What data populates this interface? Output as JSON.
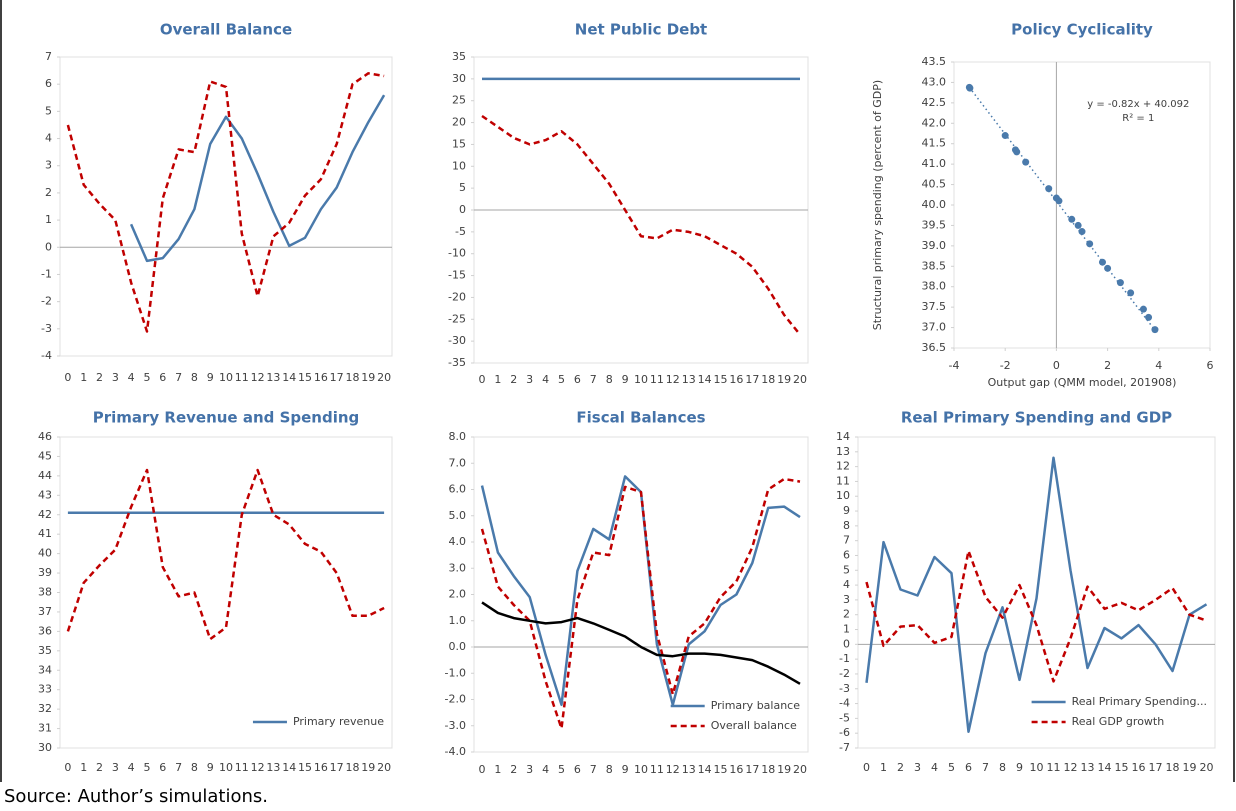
{
  "chart_data": [
    {
      "type": "line",
      "title": "Overall Balance",
      "categories": [
        "0",
        "1",
        "2",
        "3",
        "4",
        "5",
        "6",
        "7",
        "8",
        "9",
        "10",
        "11",
        "12",
        "13",
        "14",
        "15",
        "16",
        "17",
        "18",
        "19",
        "20"
      ],
      "ylim": [
        -4,
        7
      ],
      "yticks": [
        -4,
        -3,
        -2,
        -1,
        0,
        1,
        2,
        3,
        4,
        5,
        6,
        7
      ],
      "series": [
        {
          "color": "#4a7aab",
          "dash": "solid",
          "values": [
            null,
            null,
            null,
            null,
            0.85,
            -0.5,
            -0.4,
            0.3,
            1.4,
            3.8,
            4.8,
            4.0,
            2.7,
            1.3,
            0.05,
            0.35,
            1.4,
            2.2,
            3.5,
            4.6,
            5.6
          ]
        },
        {
          "color": "#c00000",
          "dash": "dashed",
          "values": [
            4.5,
            2.3,
            1.6,
            1.0,
            -1.3,
            -3.1,
            1.8,
            3.6,
            3.5,
            6.1,
            5.9,
            0.5,
            -1.8,
            0.4,
            0.9,
            1.9,
            2.5,
            3.8,
            6.0,
            6.4,
            6.3
          ]
        }
      ]
    },
    {
      "type": "line",
      "title": "Net Public Debt",
      "categories": [
        "0",
        "1",
        "2",
        "3",
        "4",
        "5",
        "6",
        "7",
        "8",
        "9",
        "10",
        "11",
        "12",
        "13",
        "14",
        "15",
        "16",
        "17",
        "18",
        "19",
        "20"
      ],
      "ylim": [
        -35,
        35
      ],
      "yticks": [
        -35,
        -30,
        -25,
        -20,
        -15,
        -10,
        -5,
        0,
        5,
        10,
        15,
        20,
        25,
        30,
        35
      ],
      "series": [
        {
          "color": "#4a7aab",
          "dash": "solid",
          "values": [
            30,
            30,
            30,
            30,
            30,
            30,
            30,
            30,
            30,
            30,
            30,
            30,
            30,
            30,
            30,
            30,
            30,
            30,
            30,
            30,
            30
          ]
        },
        {
          "color": "#c00000",
          "dash": "dashed",
          "values": [
            21.5,
            19,
            16.5,
            15,
            16,
            18,
            15,
            10.5,
            6,
            0,
            -6,
            -6.5,
            -4.5,
            -5,
            -6,
            -8,
            -10,
            -13,
            -18,
            -24,
            -28.5
          ]
        }
      ]
    },
    {
      "type": "scatter",
      "title": "Policy Cyclicality",
      "xlabel": "Output gap (QMM model, 201908)",
      "ylabel": "Structural primary spending (percent of GDP)",
      "xlim": [
        -4,
        6
      ],
      "xticks": [
        -4,
        -2,
        0,
        2,
        4,
        6
      ],
      "ylim": [
        36.5,
        43.5
      ],
      "yticks": [
        36.5,
        {
          "value": 37,
          "label": "37.0"
        },
        37.5,
        {
          "value": 38,
          "label": "38.0"
        },
        38.5,
        {
          "value": 39,
          "label": "39.0"
        },
        39.5,
        {
          "value": 40,
          "label": "40.0"
        },
        40.5,
        {
          "value": 41,
          "label": "41.0"
        },
        41.5,
        {
          "value": 42,
          "label": "42.0"
        },
        42.5,
        {
          "value": 43,
          "label": "43.0"
        },
        43.5
      ],
      "color": "#4a7aab",
      "x": [
        -3.4,
        -3.38,
        -2.0,
        -1.6,
        -1.55,
        -1.2,
        -0.3,
        0.0,
        0.1,
        0.6,
        0.85,
        1.0,
        1.3,
        1.8,
        2.0,
        2.5,
        2.9,
        3.4,
        3.6,
        3.85
      ],
      "values": [
        42.88,
        42.86,
        41.7,
        41.35,
        41.3,
        41.05,
        40.4,
        40.17,
        40.1,
        39.65,
        39.5,
        39.35,
        39.05,
        38.6,
        38.45,
        38.1,
        37.85,
        37.45,
        37.25,
        36.95
      ],
      "trendline": {
        "slope": -0.82,
        "intercept": 40.092
      },
      "annotations": [
        "y = -0.82x + 40.092",
        "R² = 1"
      ]
    },
    {
      "type": "line",
      "title": "Primary Revenue and Spending",
      "categories": [
        "0",
        "1",
        "2",
        "3",
        "4",
        "5",
        "6",
        "7",
        "8",
        "9",
        "10",
        "11",
        "12",
        "13",
        "14",
        "15",
        "16",
        "17",
        "18",
        "19",
        "20"
      ],
      "ylim": [
        30,
        46
      ],
      "yticks": [
        30,
        31,
        32,
        33,
        34,
        35,
        36,
        37,
        38,
        39,
        40,
        41,
        42,
        43,
        44,
        45,
        46
      ],
      "legend": "lower right",
      "series": [
        {
          "name": "Primary revenue",
          "color": "#4a7aab",
          "dash": "solid",
          "values": [
            42.1,
            42.1,
            42.1,
            42.1,
            42.1,
            42.1,
            42.1,
            42.1,
            42.1,
            42.1,
            42.1,
            42.1,
            42.1,
            42.1,
            42.1,
            42.1,
            42.1,
            42.1,
            42.1,
            42.1,
            42.1
          ]
        },
        {
          "color": "#c00000",
          "dash": "dashed",
          "values": [
            36,
            38.5,
            39.4,
            40.2,
            42.4,
            44.3,
            39.3,
            37.8,
            38,
            35.6,
            36.2,
            42,
            44.3,
            42,
            41.5,
            40.5,
            40.1,
            39,
            36.8,
            36.8,
            37.2
          ]
        }
      ]
    },
    {
      "type": "line",
      "title": "Fiscal Balances",
      "categories": [
        "0",
        "1",
        "2",
        "3",
        "4",
        "5",
        "6",
        "7",
        "8",
        "9",
        "10",
        "11",
        "12",
        "13",
        "14",
        "15",
        "16",
        "17",
        "18",
        "19",
        "20"
      ],
      "ylim": [
        -4,
        8
      ],
      "yticks": [
        {
          "value": -4,
          "label": "-4.0"
        },
        {
          "value": -3,
          "label": "-3.0"
        },
        {
          "value": -2,
          "label": "-2.0"
        },
        {
          "value": -1,
          "label": "-1.0"
        },
        {
          "value": 0,
          "label": "0.0"
        },
        {
          "value": 1,
          "label": "1.0"
        },
        {
          "value": 2,
          "label": "2.0"
        },
        {
          "value": 3,
          "label": "3.0"
        },
        {
          "value": 4,
          "label": "4.0"
        },
        {
          "value": 5,
          "label": "5.0"
        },
        {
          "value": 6,
          "label": "6.0"
        },
        {
          "value": 7,
          "label": "7.0"
        },
        {
          "value": 8,
          "label": "8.0"
        }
      ],
      "legend": "lower right",
      "series": [
        {
          "name": "Primary balance",
          "color": "#4a7aab",
          "dash": "solid",
          "values": [
            6.15,
            3.6,
            2.7,
            1.9,
            -0.3,
            -2.2,
            2.9,
            4.5,
            4.1,
            6.5,
            5.9,
            0.1,
            -2.2,
            0.1,
            0.6,
            1.6,
            2.0,
            3.2,
            5.3,
            5.35,
            4.95
          ]
        },
        {
          "name": "Overall balance",
          "color": "#c00000",
          "dash": "dashed",
          "values": [
            4.5,
            2.3,
            1.6,
            1.0,
            -1.3,
            -3.1,
            1.8,
            3.6,
            3.5,
            6.1,
            5.9,
            0.5,
            -1.8,
            0.4,
            0.9,
            1.9,
            2.5,
            3.8,
            6.0,
            6.4,
            6.3
          ]
        },
        {
          "color": "#000000",
          "dash": "solid",
          "values": [
            1.7,
            1.3,
            1.1,
            1.0,
            0.9,
            0.95,
            1.1,
            0.9,
            0.65,
            0.4,
            0.0,
            -0.3,
            -0.35,
            -0.25,
            -0.25,
            -0.3,
            -0.4,
            -0.5,
            -0.75,
            -1.05,
            -1.4
          ]
        }
      ]
    },
    {
      "type": "line",
      "title": "Real Primary Spending and GDP",
      "categories": [
        "0",
        "1",
        "2",
        "3",
        "4",
        "5",
        "6",
        "7",
        "8",
        "9",
        "10",
        "11",
        "12",
        "13",
        "14",
        "15",
        "16",
        "17",
        "18",
        "19",
        "20"
      ],
      "ylim": [
        -7,
        14
      ],
      "yticks": [
        -7,
        -6,
        -5,
        -4,
        -3,
        -2,
        -1,
        0,
        1,
        2,
        3,
        4,
        5,
        6,
        7,
        8,
        9,
        10,
        11,
        12,
        13,
        14
      ],
      "legend": "lower right",
      "series": [
        {
          "name": "Real Primary Spending...",
          "color": "#4a7aab",
          "dash": "solid",
          "values": [
            -2.6,
            6.9,
            3.7,
            3.3,
            5.9,
            4.8,
            -5.9,
            -0.6,
            2.5,
            -2.4,
            3.1,
            12.6,
            5.0,
            -1.6,
            1.1,
            0.4,
            1.3,
            0.0,
            -1.8,
            2.0,
            2.7
          ]
        },
        {
          "name": "Real GDP growth",
          "color": "#c00000",
          "dash": "dashed",
          "values": [
            4.2,
            -0.1,
            1.2,
            1.3,
            0.1,
            0.5,
            6.3,
            3.2,
            1.8,
            4.0,
            1.3,
            -2.5,
            0.4,
            3.9,
            2.4,
            2.8,
            2.3,
            3.0,
            3.8,
            2.0,
            1.6
          ]
        }
      ]
    }
  ],
  "source": "Source: Author’s simulations."
}
